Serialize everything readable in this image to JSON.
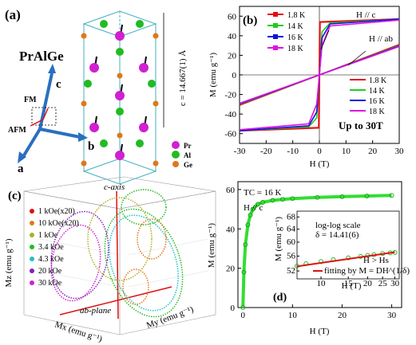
{
  "panels": {
    "a": {
      "label": "(a)",
      "compound": "PrAlGe",
      "lattice_label": "c = 14.667(1) Å",
      "axis_labels": {
        "c": "c",
        "b": "b",
        "a": "a",
        "fm": "FM",
        "afm": "AFM"
      },
      "legend": [
        {
          "label": "Pr",
          "color": "#d020d0"
        },
        {
          "label": "Al",
          "color": "#22bb22"
        },
        {
          "label": "Ge",
          "color": "#e07818"
        }
      ]
    },
    "b": {
      "label": "(b)",
      "field_label_c": "H // c",
      "field_label_ab": "H // ab",
      "note": "Up to 30T",
      "xlabel": "H (T)",
      "ylabel": "M (emu g⁻¹)",
      "legend_c": [
        {
          "label": "1.8 K",
          "color": "#e01010"
        },
        {
          "label": "14  K",
          "color": "#22cc22"
        },
        {
          "label": "16  K",
          "color": "#1010e0"
        },
        {
          "label": "18  K",
          "color": "#e010e0"
        }
      ],
      "legend_ab": [
        {
          "label": "1.8 K",
          "color": "#e01010"
        },
        {
          "label": "14  K",
          "color": "#22cc22"
        },
        {
          "label": "16  K",
          "color": "#1010e0"
        },
        {
          "label": "18  K",
          "color": "#e010e0"
        }
      ]
    },
    "c": {
      "label": "(c)",
      "axis_label": "c-axis",
      "plane_label": "ab-plane",
      "z_label": "Mz (emu g⁻¹)",
      "x_label": "Mx (emu g⁻¹)",
      "y_label": "My (emu g⁻¹)",
      "legend": [
        {
          "label": "1    kOe(x20)",
          "color": "#e01010"
        },
        {
          "label": "10   kOe(x20)",
          "color": "#e07818"
        },
        {
          "label": "1    kOe",
          "color": "#b0b020"
        },
        {
          "label": "3.4 kOe",
          "color": "#22bb22"
        },
        {
          "label": "4.3 kOe",
          "color": "#20c0c0"
        },
        {
          "label": "20   kOe",
          "color": "#8020c0"
        },
        {
          "label": "30   kOe",
          "color": "#d020d0"
        }
      ]
    },
    "d": {
      "label": "(d)",
      "tc": "TC = 16 K",
      "field_label": "H // c",
      "xlabel": "H (T)",
      "ylabel": "M (emu g⁻¹)",
      "inset_title": "log-log scale",
      "inset_delta": "δ = 14.41(6)",
      "inset_condition": "H > Hs",
      "inset_fit": "fitting by M = DH^(1/δ)",
      "inset_xlabel": "H (T)",
      "inset_ylabel": "M (emu g⁻¹)"
    }
  },
  "chart_data": [
    {
      "type": "line",
      "title": "",
      "xlabel": "H (T)",
      "ylabel": "M (emu g⁻¹)",
      "xlim": [
        -30,
        30
      ],
      "ylim": [
        -70,
        70
      ],
      "xticks": [
        -30,
        -20,
        -10,
        0,
        10,
        20,
        30
      ],
      "yticks": [
        -60,
        -40,
        -20,
        0,
        20,
        40,
        60
      ],
      "series": [
        {
          "name": "H // c 1.8 K",
          "x": [
            -30,
            -0.2,
            0.2,
            30
          ],
          "y": [
            -57,
            -54,
            54,
            57
          ]
        },
        {
          "name": "H // c 14 K",
          "x": [
            -30,
            -4,
            -1,
            0,
            1,
            4,
            30
          ],
          "y": [
            -57,
            -53,
            -44,
            0,
            44,
            53,
            57
          ]
        },
        {
          "name": "H // c 16 K",
          "x": [
            -30,
            -4,
            -1,
            0,
            1,
            4,
            30
          ],
          "y": [
            -57,
            -52,
            -38,
            0,
            38,
            52,
            57
          ]
        },
        {
          "name": "H // c 18 K",
          "x": [
            -30,
            -4,
            -1,
            0,
            1,
            4,
            30
          ],
          "y": [
            -56,
            -50,
            -30,
            0,
            30,
            50,
            56
          ]
        },
        {
          "name": "H // ab 1.8 K",
          "x": [
            -30,
            30
          ],
          "y": [
            -31,
            31
          ]
        },
        {
          "name": "H // ab 14 K",
          "x": [
            -30,
            30
          ],
          "y": [
            -30,
            30
          ]
        },
        {
          "name": "H // ab 16 K",
          "x": [
            -30,
            30
          ],
          "y": [
            -29.5,
            29.5
          ]
        },
        {
          "name": "H // ab 18 K",
          "x": [
            -30,
            30
          ],
          "y": [
            -29,
            29
          ]
        }
      ]
    },
    {
      "type": "scatter",
      "title": "",
      "xlabel": "H (T)",
      "ylabel": "M (emu g⁻¹)",
      "xlim": [
        -1,
        32
      ],
      "ylim": [
        0,
        64
      ],
      "xticks": [
        0,
        10,
        20,
        30
      ],
      "yticks": [
        0,
        20,
        40,
        60
      ],
      "series": [
        {
          "name": "M(H)",
          "x": [
            0,
            0.2,
            0.5,
            1,
            1.5,
            2,
            3,
            4,
            6,
            8,
            10,
            15,
            20,
            25,
            30
          ],
          "y": [
            0,
            18,
            32,
            42,
            47,
            50,
            52.5,
            53.5,
            54.5,
            55,
            55.4,
            56,
            56.4,
            56.7,
            57
          ]
        }
      ]
    },
    {
      "type": "scatter",
      "title": "log-log scale",
      "xlabel": "H (T)",
      "ylabel": "M (emu g⁻¹)",
      "xscale": "log",
      "yscale": "log",
      "xlim": [
        7,
        32
      ],
      "ylim": [
        50,
        70
      ],
      "xticks": [
        10,
        15,
        20,
        25,
        30
      ],
      "yticks": [
        52,
        56,
        60,
        64,
        68
      ],
      "series": [
        {
          "name": "data",
          "x": [
            7,
            8,
            10,
            12,
            15,
            18,
            20,
            22,
            25,
            28,
            30
          ],
          "y": [
            53.3,
            53.9,
            54.5,
            55,
            55.5,
            55.9,
            56.2,
            56.4,
            56.7,
            56.9,
            57
          ]
        },
        {
          "name": "fitting by M = DH^(1/δ)",
          "x": [
            7,
            30
          ],
          "y": [
            53.2,
            57.1
          ]
        }
      ]
    }
  ]
}
